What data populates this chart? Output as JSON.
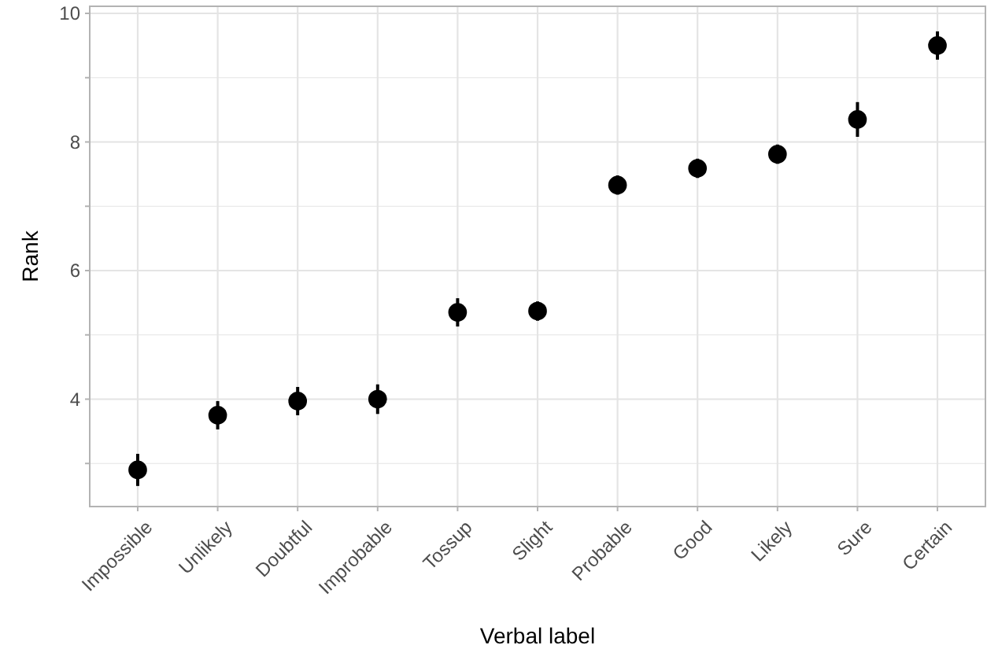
{
  "chart_data": {
    "type": "scatter",
    "xlabel": "Verbal label",
    "ylabel": "Rank",
    "categories": [
      "Impossible",
      "Unlikely",
      "Doubtful",
      "Improbable",
      "Tossup",
      "Slight",
      "Probable",
      "Good",
      "Likely",
      "Sure",
      "Certain"
    ],
    "values": [
      2.9,
      3.75,
      3.97,
      4.0,
      5.35,
      5.37,
      7.33,
      7.59,
      7.81,
      8.35,
      9.5
    ],
    "errors": [
      0.25,
      0.22,
      0.22,
      0.23,
      0.22,
      0.15,
      0.15,
      0.15,
      0.15,
      0.27,
      0.22
    ],
    "color": "#000000",
    "marker": "circle",
    "ylim": [
      2.33,
      10.11
    ],
    "yticks": [
      {
        "value": 3,
        "label": null
      },
      4,
      {
        "value": 5,
        "label": null
      },
      6,
      {
        "value": 7,
        "label": null
      },
      8,
      {
        "value": 9,
        "label": null
      },
      10
    ],
    "grid": true
  }
}
